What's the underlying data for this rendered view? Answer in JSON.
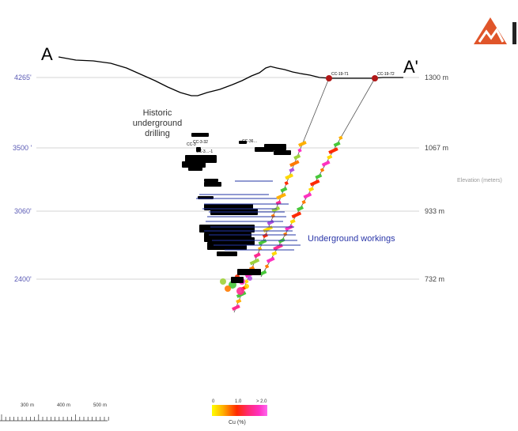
{
  "section": {
    "label_left": "A",
    "label_right": "A'"
  },
  "elevations": [
    {
      "left": "4265'",
      "right": "1300 m"
    },
    {
      "left": "3500 '",
      "right": "1067 m"
    },
    {
      "left": "3060'",
      "right": "933 m"
    },
    {
      "left": "2400'",
      "right": "732 m"
    }
  ],
  "axis_title": "Elevation (meters)",
  "annotations": {
    "historic_line1": "Historic",
    "historic_line2": "underground",
    "historic_line3": "drilling",
    "workings": "Underground workings"
  },
  "drillholes": [
    {
      "name": "CC-19-71"
    },
    {
      "name": "CC-19-72"
    }
  ],
  "historic_hole_labels": [
    "CC-3",
    "CC-3-32",
    "CC-3…-1",
    "CC-36…",
    "CC-3…"
  ],
  "scale_bar": {
    "ticks": [
      "300",
      "400",
      "500"
    ],
    "unit": "m"
  },
  "legend": {
    "min": "0",
    "mid": "1.0",
    "max": "> 2.0",
    "title": "Cu (%)",
    "gradient": [
      "#ffff00",
      "#ffb000",
      "#ff2a00",
      "#ff2a70",
      "#ff30c0",
      "#ff66ee"
    ]
  },
  "colors": {
    "logo": "#e0552a",
    "guide_line": "#c8c8c8",
    "drill_collar": "#b01818",
    "workings": "#2336a6",
    "workings_label": "#2a36a8"
  }
}
